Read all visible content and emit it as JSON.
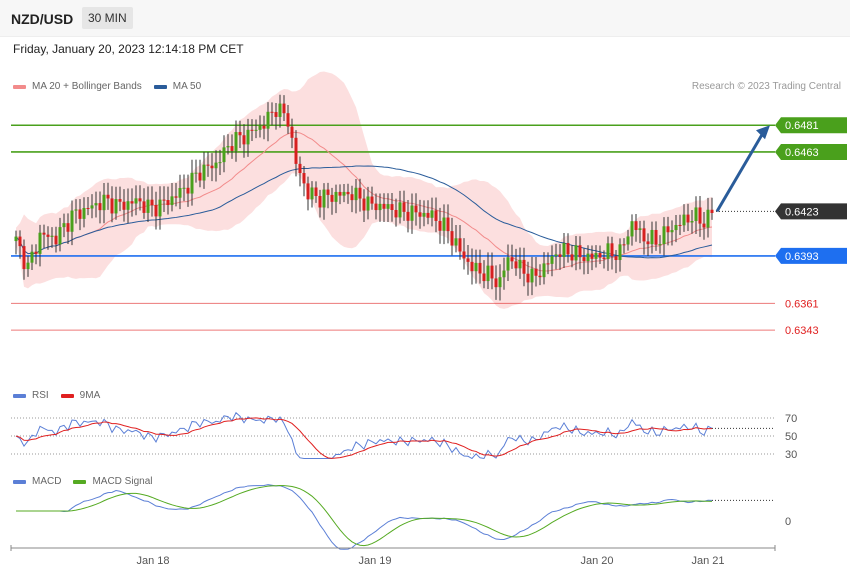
{
  "header": {
    "symbol": "NZD/USD",
    "timeframe": "30 MIN"
  },
  "date_text": "Friday, January 20, 2023 12:14:18 PM CET",
  "credit": "Research © 2023 Trading Central",
  "legends": {
    "price": [
      {
        "label": "MA 20 + Bollinger Bands",
        "color": "#f28b8b"
      },
      {
        "label": "MA 50",
        "color": "#2a5c9a"
      }
    ],
    "rsi": [
      {
        "label": "RSI",
        "color": "#5b7fd6"
      },
      {
        "label": "9MA",
        "color": "#e02020"
      }
    ],
    "macd": [
      {
        "label": "MACD",
        "color": "#5b7fd6"
      },
      {
        "label": "MACD Signal",
        "color": "#55aa22"
      }
    ]
  },
  "chart_data": {
    "type": "candlestick",
    "timeframe": "30 MIN",
    "x_tick_labels": [
      "Jan 18",
      "Jan 19",
      "Jan 20",
      "Jan 21"
    ],
    "price_range": [
      0.6333,
      0.6498
    ],
    "price_levels": [
      {
        "value": "0.6481",
        "type": "resistance",
        "color": "#4aa01c"
      },
      {
        "value": "0.6463",
        "type": "resistance",
        "color": "#4aa01c"
      },
      {
        "value": "0.6423",
        "type": "last",
        "color": "#333333"
      },
      {
        "value": "0.6393",
        "type": "pivot",
        "color": "#1e6ff0"
      },
      {
        "value": "0.6361",
        "type": "support",
        "color": "#e02020"
      },
      {
        "value": "0.6343",
        "type": "support",
        "color": "#e02020"
      }
    ],
    "forecast_arrow": {
      "from": 0.6423,
      "to": 0.6481
    },
    "close_anchors": [
      [
        0,
        0.6403
      ],
      [
        3,
        0.6385
      ],
      [
        6,
        0.6407
      ],
      [
        10,
        0.6405
      ],
      [
        14,
        0.642
      ],
      [
        18,
        0.6425
      ],
      [
        22,
        0.643
      ],
      [
        26,
        0.6427
      ],
      [
        30,
        0.643
      ],
      [
        34,
        0.6425
      ],
      [
        38,
        0.643
      ],
      [
        42,
        0.6438
      ],
      [
        46,
        0.645
      ],
      [
        50,
        0.6455
      ],
      [
        54,
        0.647
      ],
      [
        58,
        0.6475
      ],
      [
        62,
        0.6482
      ],
      [
        65,
        0.6493
      ],
      [
        68,
        0.6485
      ],
      [
        70,
        0.6455
      ],
      [
        73,
        0.6435
      ],
      [
        76,
        0.6432
      ],
      [
        80,
        0.6434
      ],
      [
        84,
        0.6435
      ],
      [
        88,
        0.6428
      ],
      [
        92,
        0.6426
      ],
      [
        96,
        0.6423
      ],
      [
        100,
        0.6422
      ],
      [
        104,
        0.642
      ],
      [
        108,
        0.641
      ],
      [
        111,
        0.6396
      ],
      [
        114,
        0.6385
      ],
      [
        118,
        0.638
      ],
      [
        121,
        0.6375
      ],
      [
        123,
        0.6392
      ],
      [
        126,
        0.6385
      ],
      [
        129,
        0.6378
      ],
      [
        132,
        0.6385
      ],
      [
        135,
        0.6395
      ],
      [
        138,
        0.6396
      ],
      [
        141,
        0.6393
      ],
      [
        144,
        0.6392
      ],
      [
        148,
        0.6395
      ],
      [
        151,
        0.6395
      ],
      [
        154,
        0.6415
      ],
      [
        157,
        0.6405
      ],
      [
        160,
        0.6403
      ],
      [
        163,
        0.641
      ],
      [
        166,
        0.6415
      ],
      [
        169,
        0.642
      ],
      [
        172,
        0.6416
      ],
      [
        174,
        0.6423
      ]
    ],
    "rsi": {
      "levels": [
        70,
        50,
        30
      ]
    },
    "macd": {
      "levels": [
        0
      ]
    }
  }
}
